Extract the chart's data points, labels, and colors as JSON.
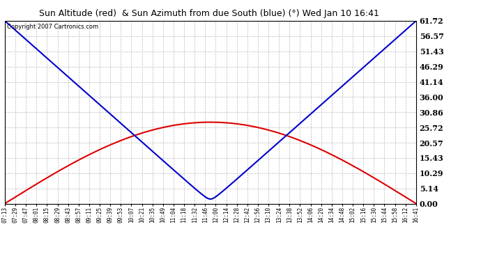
{
  "title": "Sun Altitude (red)  & Sun Azimuth from due South (blue) (°) Wed Jan 10 16:41",
  "copyright": "Copyright 2007 Cartronics.com",
  "yticks": [
    0.0,
    5.14,
    10.29,
    15.43,
    20.57,
    25.72,
    30.86,
    36.0,
    41.14,
    46.29,
    51.43,
    56.57,
    61.72
  ],
  "ymax": 61.72,
  "ymin": 0.0,
  "bg_color": "#ffffff",
  "plot_bg_color": "#ffffff",
  "grid_color": "#bbbbbb",
  "red_color": "#dd0000",
  "blue_color": "#0000cc",
  "solar_noon_minutes": 717,
  "azimuth_min_value": 0.3,
  "azimuth_max_value": 61.72,
  "altitude_max_value": 27.5,
  "xtick_labels": [
    "07:13",
    "07:29",
    "07:47",
    "08:01",
    "08:15",
    "08:29",
    "08:43",
    "08:57",
    "09:11",
    "09:25",
    "09:39",
    "09:53",
    "10:07",
    "10:21",
    "10:35",
    "10:49",
    "11:04",
    "11:18",
    "11:32",
    "11:46",
    "12:00",
    "12:14",
    "12:28",
    "12:42",
    "12:56",
    "13:10",
    "13:24",
    "13:38",
    "13:52",
    "14:06",
    "14:20",
    "14:34",
    "14:48",
    "15:02",
    "15:16",
    "15:30",
    "15:44",
    "15:58",
    "16:12",
    "16:41"
  ]
}
